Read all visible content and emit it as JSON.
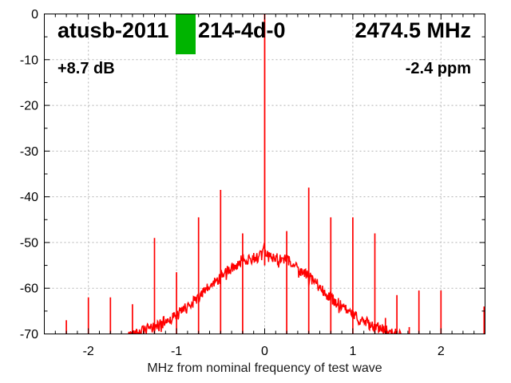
{
  "header": {
    "device_id_prefix": "atusb-2011",
    "device_id_suffix": "214-4d-0",
    "center_frequency": "2474.5 MHz",
    "power_offset": "+8.7 dB",
    "frequency_error": "-2.4 ppm",
    "marker_color": "#00b400"
  },
  "chart_data": {
    "type": "line",
    "title": "",
    "xlabel": "MHz from nominal frequency of test wave",
    "ylabel": "",
    "xlim": [
      -2.5,
      2.5
    ],
    "ylim": [
      -70,
      0
    ],
    "x_major_ticks": [
      -2,
      -1,
      0,
      1,
      2
    ],
    "x_minor_step": 0.125,
    "y_major_ticks": [
      0,
      -10,
      -20,
      -30,
      -40,
      -50,
      -60,
      -70
    ],
    "y_minor_step": 5,
    "grid": true,
    "legend": "none",
    "trace_color": "#ff0000",
    "grid_color": "#b3b3b3",
    "axis_color": "#000000",
    "carrier": {
      "freq_mhz": 0.0,
      "peak_db": 0
    },
    "noise_hump_envelope": [
      [
        -1.55,
        -70.5
      ],
      [
        -1.4,
        -69.5
      ],
      [
        -1.25,
        -68.5
      ],
      [
        -1.0,
        -66.0
      ],
      [
        -0.75,
        -62.0
      ],
      [
        -0.5,
        -57.5
      ],
      [
        -0.25,
        -53.8
      ],
      [
        -0.1,
        -53.2
      ],
      [
        -0.03,
        -53.0
      ],
      [
        0.0,
        -50.8
      ],
      [
        0.03,
        -53.0
      ],
      [
        0.1,
        -53.2
      ],
      [
        0.25,
        -53.8
      ],
      [
        0.5,
        -57.5
      ],
      [
        0.75,
        -62.0
      ],
      [
        1.0,
        -66.0
      ],
      [
        1.25,
        -68.5
      ],
      [
        1.4,
        -69.5
      ],
      [
        1.55,
        -70.5
      ]
    ],
    "noise_band_db": 2.5,
    "spurs": [
      {
        "freq_mhz": -2.25,
        "peak_db": -67.0
      },
      {
        "freq_mhz": -2.0,
        "peak_db": -62.0
      },
      {
        "freq_mhz": -1.75,
        "peak_db": -62.0
      },
      {
        "freq_mhz": -1.5,
        "peak_db": -63.5
      },
      {
        "freq_mhz": -1.25,
        "peak_db": -49.0
      },
      {
        "freq_mhz": -1.0,
        "peak_db": -56.5
      },
      {
        "freq_mhz": -0.75,
        "peak_db": -44.5
      },
      {
        "freq_mhz": -0.5,
        "peak_db": -38.5
      },
      {
        "freq_mhz": -0.25,
        "peak_db": -48.0
      },
      {
        "freq_mhz": 0.25,
        "peak_db": -47.5
      },
      {
        "freq_mhz": 0.5,
        "peak_db": -38.0
      },
      {
        "freq_mhz": 0.75,
        "peak_db": -44.5
      },
      {
        "freq_mhz": 1.0,
        "peak_db": -44.5
      },
      {
        "freq_mhz": 1.25,
        "peak_db": -48.0
      },
      {
        "freq_mhz": 1.37,
        "peak_db": -66.5
      },
      {
        "freq_mhz": 1.5,
        "peak_db": -61.5
      },
      {
        "freq_mhz": 1.64,
        "peak_db": -68.5
      },
      {
        "freq_mhz": 1.75,
        "peak_db": -60.5
      },
      {
        "freq_mhz": 2.0,
        "peak_db": -60.5
      },
      {
        "freq_mhz": 2.5,
        "peak_db": -64.0
      }
    ]
  }
}
